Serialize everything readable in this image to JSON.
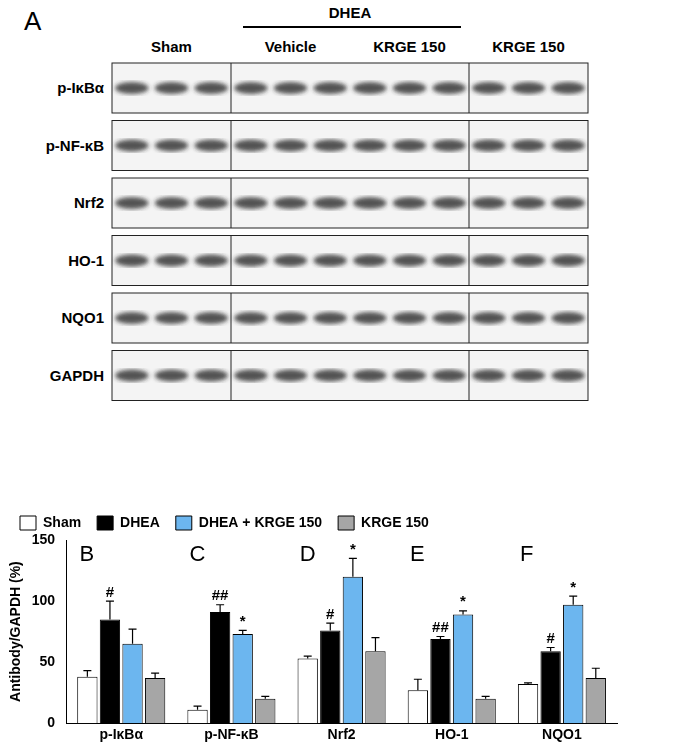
{
  "blot": {
    "panel_label": "A",
    "group_label": "DHEA",
    "columns": [
      "Sham",
      "Vehicle",
      "KRGE 150",
      "KRGE 150"
    ],
    "rows": [
      "p-IκBα",
      "p-NF-κB",
      "Nrf2",
      "HO-1",
      "NQO1",
      "GAPDH"
    ]
  },
  "chart_data": {
    "type": "bar",
    "y_label": "Antibody/GAPDH (%)",
    "categories": [
      "p-IκBα",
      "p-NF-κB",
      "Nrf2",
      "HO-1",
      "NQO1"
    ],
    "panel_labels": [
      "B",
      "C",
      "D",
      "E",
      "F"
    ],
    "series": [
      {
        "name": "Sham",
        "color": "#ffffff",
        "values": [
          38,
          11,
          53,
          27,
          32
        ],
        "errors": [
          5,
          3,
          2,
          9,
          1
        ]
      },
      {
        "name": "DHEA",
        "color": "#000000",
        "values": [
          85,
          91,
          76,
          69,
          59
        ],
        "errors": [
          15,
          6,
          6,
          2,
          3
        ],
        "marks": [
          "#",
          "##",
          "#",
          "##",
          "#"
        ]
      },
      {
        "name": "DHEA + KRGE 150",
        "color": "#6cb6ef",
        "values": [
          65,
          73,
          120,
          89,
          97
        ],
        "errors": [
          12,
          3,
          15,
          3,
          7
        ],
        "marks": [
          null,
          "*",
          "*",
          "*",
          "*"
        ]
      },
      {
        "name": "KRGE 150",
        "color": "#a6a6a6",
        "values": [
          37,
          20,
          59,
          20,
          37
        ],
        "errors": [
          4,
          2,
          11,
          2,
          8
        ]
      }
    ],
    "ylim": [
      0,
      150
    ],
    "yticks": [
      0,
      50,
      100,
      150
    ],
    "grid": false,
    "legend": "top"
  }
}
